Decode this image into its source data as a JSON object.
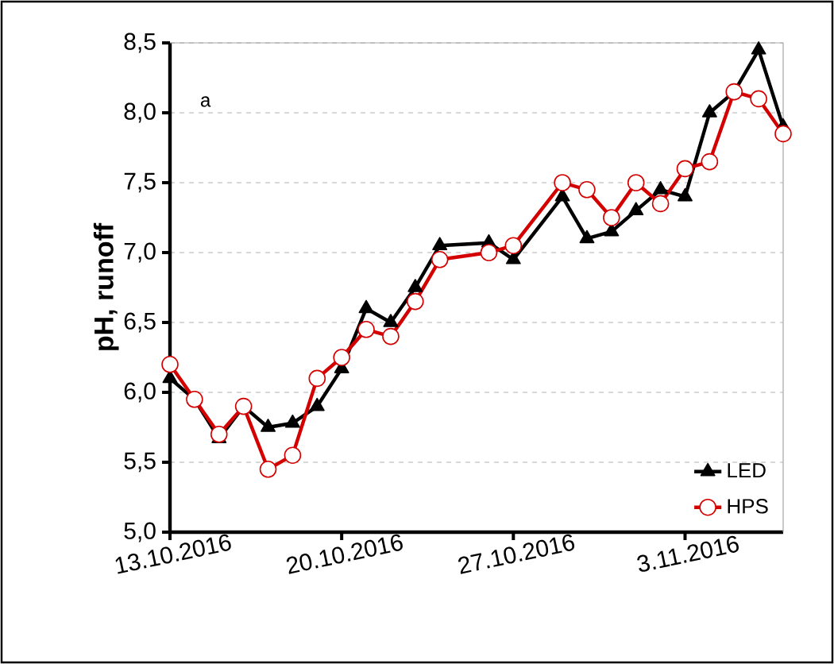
{
  "chart_data": {
    "type": "line",
    "ylabel": "pH, runoff",
    "annotations": [
      "a"
    ],
    "xlim": [
      "2016-10-13",
      "2016-11-07"
    ],
    "ylim": [
      5.0,
      8.5
    ],
    "xticks": [
      {
        "value": "2016-10-13",
        "label": "13.10.2016"
      },
      {
        "value": "2016-10-20",
        "label": "20.10.2016"
      },
      {
        "value": "2016-10-27",
        "label": "27.10.2016"
      },
      {
        "value": "2016-11-03",
        "label": "3.11.2016"
      }
    ],
    "yticks": [
      {
        "value": 5.0,
        "label": "5,0"
      },
      {
        "value": 5.5,
        "label": "5,5"
      },
      {
        "value": 6.0,
        "label": "6,0"
      },
      {
        "value": 6.5,
        "label": "6,5"
      },
      {
        "value": 7.0,
        "label": "7,0"
      },
      {
        "value": 7.5,
        "label": "7,5"
      },
      {
        "value": 8.0,
        "label": "8,0"
      },
      {
        "value": 8.5,
        "label": "8,5"
      }
    ],
    "grid": "y",
    "legend": "bottom right",
    "line_style": "solid",
    "series": [
      {
        "name": "LED",
        "color": "#000000",
        "marker": "triangle",
        "x": [
          "2016-10-13",
          "2016-10-14",
          "2016-10-15",
          "2016-10-16",
          "2016-10-17",
          "2016-10-18",
          "2016-10-19",
          "2016-10-20",
          "2016-10-21",
          "2016-10-22",
          "2016-10-23",
          "2016-10-24",
          "2016-10-26",
          "2016-10-27",
          "2016-10-29",
          "2016-10-30",
          "2016-10-31",
          "2016-11-01",
          "2016-11-02",
          "2016-11-03",
          "2016-11-04",
          "2016-11-05",
          "2016-11-06",
          "2016-11-07"
        ],
        "values": [
          6.1,
          5.95,
          5.67,
          5.9,
          5.75,
          5.78,
          5.9,
          6.17,
          6.6,
          6.5,
          6.75,
          7.05,
          7.07,
          6.95,
          7.4,
          7.1,
          7.15,
          7.3,
          7.45,
          7.4,
          8.0,
          8.15,
          8.45,
          7.9
        ]
      },
      {
        "name": "HPS",
        "color": "#d40000",
        "marker": "circle",
        "x": [
          "2016-10-13",
          "2016-10-14",
          "2016-10-15",
          "2016-10-16",
          "2016-10-17",
          "2016-10-18",
          "2016-10-19",
          "2016-10-20",
          "2016-10-21",
          "2016-10-22",
          "2016-10-23",
          "2016-10-24",
          "2016-10-26",
          "2016-10-27",
          "2016-10-29",
          "2016-10-30",
          "2016-10-31",
          "2016-11-01",
          "2016-11-02",
          "2016-11-03",
          "2016-11-04",
          "2016-11-05",
          "2016-11-06",
          "2016-11-07"
        ],
        "values": [
          6.2,
          5.95,
          5.7,
          5.9,
          5.45,
          5.55,
          6.1,
          6.25,
          6.45,
          6.4,
          6.65,
          6.95,
          7.0,
          7.05,
          7.5,
          7.45,
          7.25,
          7.5,
          7.35,
          7.6,
          7.65,
          8.15,
          8.1,
          7.85
        ]
      }
    ]
  }
}
